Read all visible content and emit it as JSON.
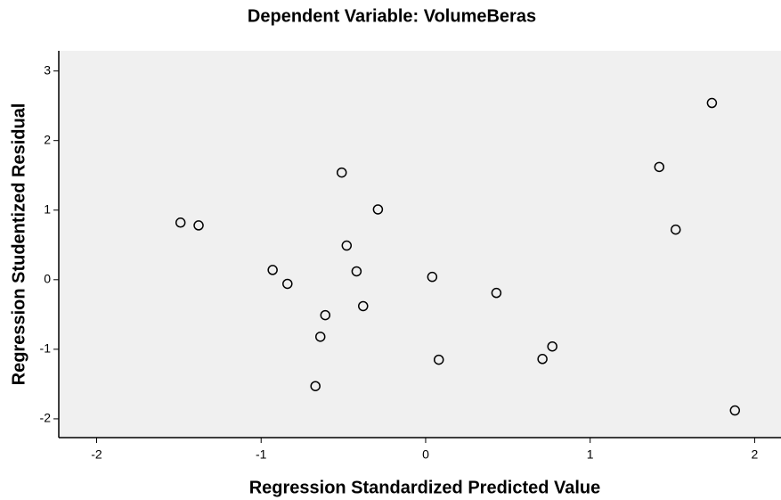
{
  "chart_data": {
    "type": "scatter",
    "title": "Dependent Variable: VolumeBeras",
    "xlabel": "Regression Standardized Predicted Value",
    "ylabel": "Regression Studentized Residual",
    "x": [
      -1.49,
      -1.38,
      -0.93,
      -0.84,
      -0.51,
      -0.29,
      -0.48,
      -0.42,
      -0.61,
      -0.38,
      -0.64,
      -0.67,
      0.04,
      0.08,
      0.43,
      0.71,
      0.77,
      1.42,
      1.52,
      1.74,
      1.88
    ],
    "values": [
      0.82,
      0.78,
      0.14,
      -0.06,
      1.54,
      1.01,
      0.49,
      0.12,
      -0.51,
      -0.38,
      -0.82,
      -1.53,
      0.04,
      -1.15,
      -0.19,
      -1.14,
      -0.96,
      1.62,
      0.72,
      2.54,
      -1.88
    ],
    "color": "#000000",
    "background": "#f0f0f0",
    "xlim": [
      -2.23,
      2.16
    ],
    "xticks": [
      -2,
      -1,
      0,
      1,
      2
    ],
    "ylim": [
      -2.27,
      3.29
    ],
    "yticks": [
      -2,
      -1,
      0,
      1,
      2,
      3
    ]
  }
}
